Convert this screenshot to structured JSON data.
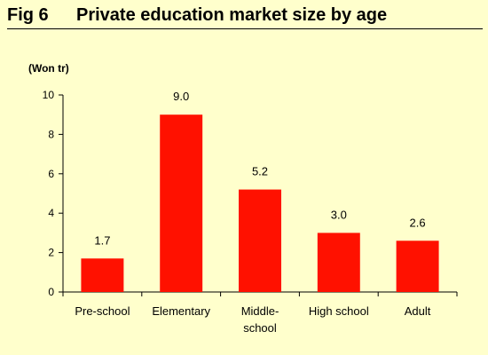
{
  "header": {
    "fig_number": "Fig 6",
    "title": "Private education market size by age"
  },
  "chart_data": {
    "type": "bar",
    "unit_label": "(Won tr)",
    "categories": [
      [
        "Pre-school"
      ],
      [
        "Elementary"
      ],
      [
        "Middle-",
        "school"
      ],
      [
        "High school"
      ],
      [
        "Adult"
      ]
    ],
    "values": [
      1.7,
      9.0,
      5.2,
      3.0,
      2.6
    ],
    "value_labels": [
      "1.7",
      "9.0",
      "5.2",
      "3.0",
      "2.6"
    ],
    "ylim": [
      0,
      10
    ],
    "yticks": [
      0,
      2,
      4,
      6,
      8,
      10
    ],
    "bar_color": "#FF1100",
    "grid": false,
    "legend": false
  }
}
